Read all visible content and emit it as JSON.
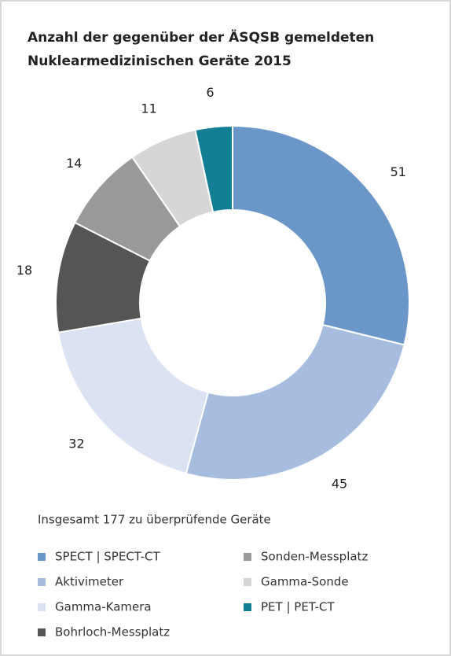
{
  "chart_data": {
    "type": "donut",
    "title": [
      "Anzahl der gegenüber der ÄSQSB gemeldeten",
      "Nuklearmedizinischen Geräte 2015"
    ],
    "annotation": "Insgesamt 177 zu überprüfende Geräte",
    "categories": [
      "SPECT | SPECT-CT",
      "Aktivimeter",
      "Gamma-Kamera",
      "Bohrloch-Messplatz",
      "Sonden-Messplatz",
      "Gamma-Sonde",
      "PET | PET-CT"
    ],
    "values": [
      51,
      45,
      32,
      18,
      14,
      11,
      6
    ],
    "colors": [
      "#6a96c8",
      "#a7bde0",
      "#dbe3f3",
      "#555555",
      "#999999",
      "#d6d6d6",
      "#137f95"
    ],
    "legend": "bottom"
  }
}
